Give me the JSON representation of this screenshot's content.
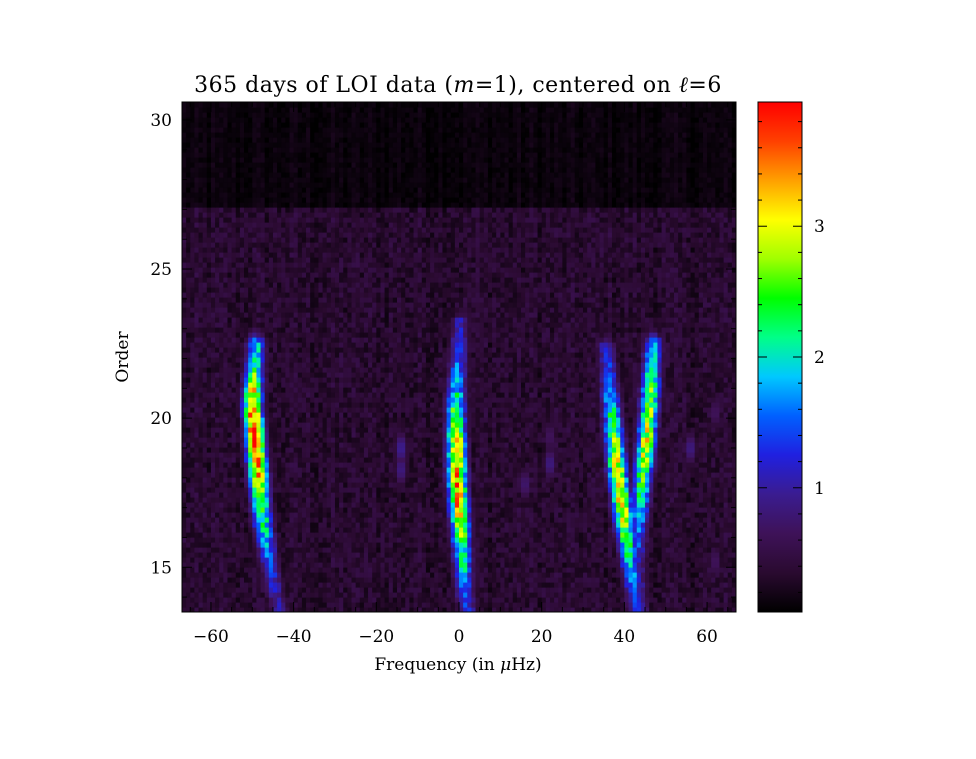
{
  "chart_data": {
    "type": "heatmap",
    "title": "365 days of LOI data (m=1), centered on ℓ=6",
    "title_parts": {
      "prefix": "365 days of LOI data (",
      "m_symbol": "m",
      "m_suffix": "=1), centered on ",
      "l_symbol": "ℓ",
      "l_suffix": "=6"
    },
    "xlabel": "Frequency (in μHz)",
    "xlabel_parts": {
      "prefix": "Frequency (in ",
      "mu": "μ",
      "suffix": "Hz)"
    },
    "ylabel": "Order",
    "xlim": [
      -67,
      67
    ],
    "ylim": [
      13.5,
      30.6
    ],
    "x_ticks": [
      -60,
      -40,
      -20,
      0,
      20,
      40,
      60
    ],
    "x_tick_labels": [
      "−60",
      "−40",
      "−20",
      "0",
      "20",
      "40",
      "60"
    ],
    "y_ticks": [
      15,
      20,
      25,
      30
    ],
    "y_tick_labels": [
      "15",
      "20",
      "25",
      "30"
    ],
    "colorbar": {
      "range": [
        0.05,
        3.95
      ],
      "ticks": [
        1,
        2,
        3
      ],
      "tick_labels": [
        "1",
        "2",
        "3"
      ],
      "colormap": [
        "#000000",
        "#2a0a30",
        "#3e1258",
        "#3a1c90",
        "#2020e0",
        "#0060ff",
        "#00c8ff",
        "#00ff88",
        "#00ff00",
        "#a0ff00",
        "#ffff00",
        "#ffa000",
        "#ff4000",
        "#ff0000"
      ]
    },
    "ridges": [
      {
        "name": "ridge-left",
        "points": [
          [
            -49,
            22.6
          ],
          [
            -50,
            20.5
          ],
          [
            -49,
            18.8
          ],
          [
            -47.5,
            16.5
          ],
          [
            -45,
            14.5
          ],
          [
            -43.5,
            13.6
          ]
        ],
        "peak": 3.9,
        "peak_order": 19.2
      },
      {
        "name": "ridge-center",
        "points": [
          [
            0.3,
            23.3
          ],
          [
            -0.8,
            20.5
          ],
          [
            -0.5,
            18.0
          ],
          [
            0.5,
            16.0
          ],
          [
            1.5,
            14.0
          ],
          [
            2,
            13.6
          ]
        ],
        "peak": 3.7,
        "peak_order": 18.0
      },
      {
        "name": "ridge-right-a",
        "points": [
          [
            35.5,
            22.5
          ],
          [
            37,
            20.2
          ],
          [
            38.5,
            18.0
          ],
          [
            40,
            16.5
          ],
          [
            41.5,
            15.0
          ],
          [
            43,
            13.6
          ]
        ],
        "peak": 3.3,
        "peak_order": 17.8
      },
      {
        "name": "ridge-right-b",
        "points": [
          [
            47,
            22.6
          ],
          [
            46,
            20.2
          ],
          [
            44.5,
            18.2
          ],
          [
            43.5,
            16.5
          ],
          [
            43,
            15.0
          ],
          [
            44,
            13.6
          ]
        ],
        "peak": 3.0,
        "peak_order": 19.5
      }
    ],
    "blobs": [
      {
        "x": -14,
        "y": 19.0,
        "value": 1.0
      },
      {
        "x": -14,
        "y": 18.3,
        "value": 0.9
      },
      {
        "x": 22,
        "y": 19.4,
        "value": 0.7
      },
      {
        "x": 22,
        "y": 18.5,
        "value": 0.9
      },
      {
        "x": 16,
        "y": 17.8,
        "value": 0.8
      },
      {
        "x": 56,
        "y": 19.0,
        "value": 0.9
      },
      {
        "x": 62,
        "y": 20.2,
        "value": 0.7
      },
      {
        "x": 62,
        "y": 15.2,
        "value": 0.7
      }
    ],
    "background": {
      "low_order_level": 0.35,
      "high_order_level": 0.12,
      "transition_order": 27.0
    }
  }
}
